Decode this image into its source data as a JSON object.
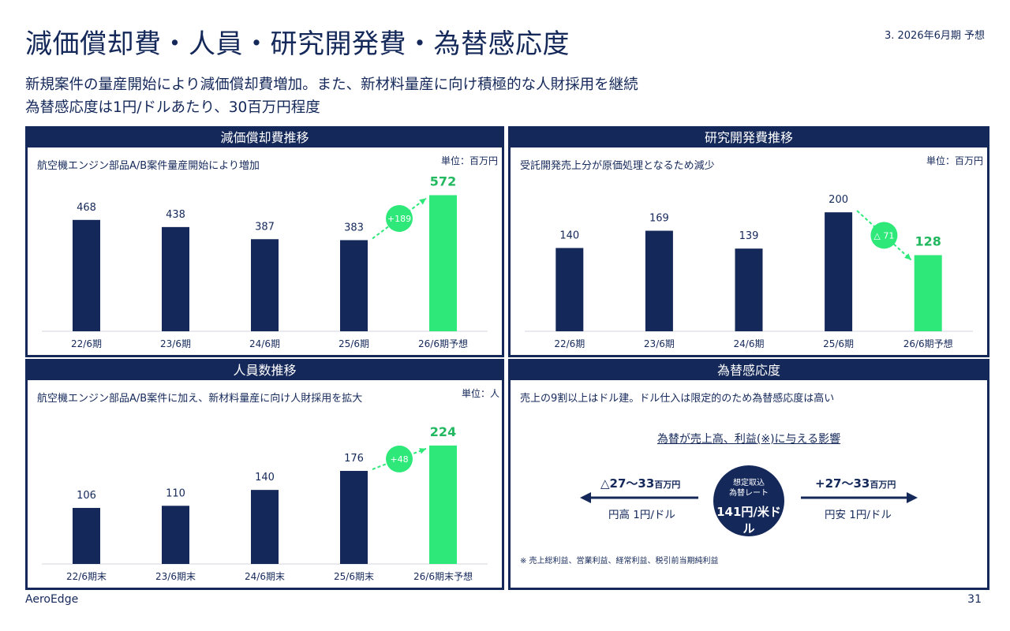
{
  "page": {
    "title": "減価償却費・人員・研究開発費・為替感応度",
    "header_note": "3. 2026年6月期 予想",
    "lead_lines": [
      "新規案件の量産開始により減価償却費増加。また、新材料量産に向け積極的な人財採用を継続",
      "為替感応度は1円/ドルあたり、30百万円程度"
    ],
    "brand": "AeroEdge",
    "page_number": "31"
  },
  "panels": {
    "depreciation": {
      "heading": "減価償却費推移",
      "note": "航空機エンジン部品A/B案件量産開始により増加",
      "unit": "単位：百万円"
    },
    "rnd": {
      "heading": "研究開発費推移",
      "note": "受託開発売上分が原価処理となるため減少",
      "unit": "単位：百万円"
    },
    "headcount": {
      "heading": "人員数推移",
      "note": "航空機エンジン部品A/B案件に加え、新材料量産に向け人財採用を拡大",
      "unit": "単位：人"
    },
    "fx": {
      "heading": "為替感応度",
      "note": "売上の9割以上はドル建。ドル仕入は限定的のため為替感応度は高い",
      "title": "為替が売上高、利益(※)に与える影響",
      "rate_label_1": "想定取込",
      "rate_label_2": "為替レート",
      "rate_value": "141円/米ドル",
      "left_value": "△27～33",
      "left_unit": "百万円",
      "left_label": "円高 1円/ドル",
      "right_value": "+27～33",
      "right_unit": "百万円",
      "right_label": "円安 1円/ドル",
      "footnote": "※ 売上総利益、営業利益、経常利益、税引前当期純利益"
    }
  },
  "colors": {
    "navy": "#14285a",
    "green": "#2ee87a"
  },
  "chart_data": [
    {
      "type": "bar",
      "title": "減価償却費推移",
      "categories": [
        "22/6期",
        "23/6期",
        "24/6期",
        "25/6期",
        "26/6期予想"
      ],
      "values": [
        468,
        438,
        387,
        383,
        572
      ],
      "highlight_index": 4,
      "change_label": "+189",
      "ylim": [
        0,
        600
      ]
    },
    {
      "type": "bar",
      "title": "研究開発費推移",
      "categories": [
        "22/6期",
        "23/6期",
        "24/6期",
        "25/6期",
        "26/6期予想"
      ],
      "values": [
        140,
        169,
        139,
        200,
        128
      ],
      "highlight_index": 4,
      "change_label": "△ 71",
      "ylim": [
        0,
        240
      ]
    },
    {
      "type": "bar",
      "title": "人員数推移",
      "categories": [
        "22/6期末",
        "23/6期末",
        "24/6期末",
        "25/6期末",
        "26/6期末予想"
      ],
      "values": [
        106,
        110,
        140,
        176,
        224
      ],
      "highlight_index": 4,
      "change_label": "+48",
      "ylim": [
        0,
        270
      ]
    }
  ]
}
